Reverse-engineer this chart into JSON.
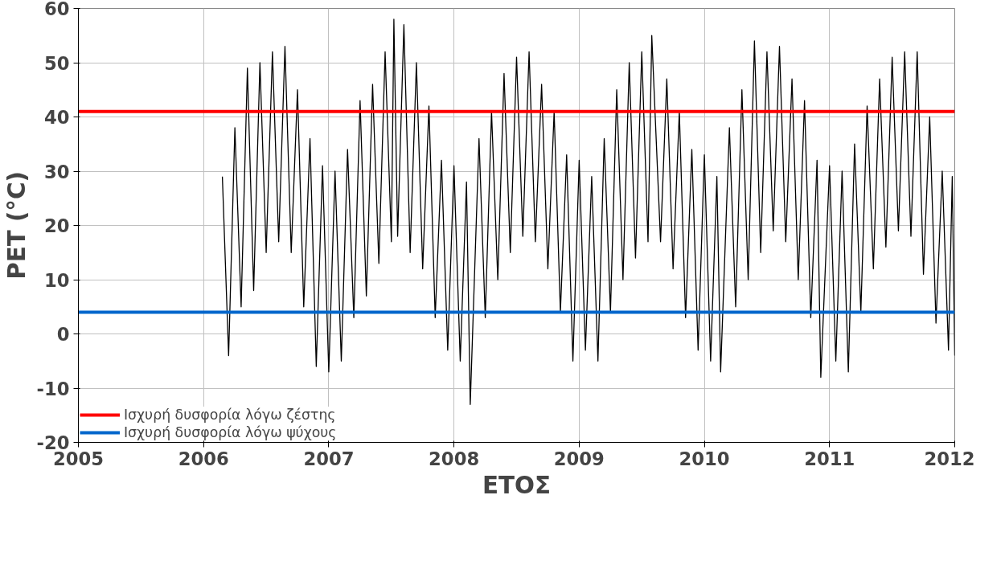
{
  "chart_data": {
    "type": "line",
    "xlabel": "ΕΤΟΣ",
    "ylabel": "PET (°C)",
    "xlim": [
      2005,
      2012
    ],
    "xticks": [
      2005,
      2006,
      2007,
      2008,
      2009,
      2010,
      2011,
      2012
    ],
    "ylim": [
      -20,
      60
    ],
    "yticks": [
      -20,
      -10,
      0,
      10,
      20,
      30,
      40,
      50,
      60
    ],
    "grid": true,
    "legend": "bottom left",
    "line_style": "solid",
    "series": [
      {
        "color": "#000000",
        "x": [
          2006.15,
          2006.2,
          2006.25,
          2006.3,
          2006.35,
          2006.4,
          2006.45,
          2006.5,
          2006.55,
          2006.6,
          2006.65,
          2006.7,
          2006.75,
          2006.8,
          2006.85,
          2006.9,
          2006.95,
          2007.0,
          2007.05,
          2007.1,
          2007.15,
          2007.2,
          2007.25,
          2007.3,
          2007.35,
          2007.4,
          2007.45,
          2007.5,
          2007.52,
          2007.55,
          2007.6,
          2007.65,
          2007.7,
          2007.75,
          2007.8,
          2007.85,
          2007.9,
          2007.95,
          2008.0,
          2008.05,
          2008.1,
          2008.13,
          2008.2,
          2008.25,
          2008.3,
          2008.35,
          2008.4,
          2008.45,
          2008.5,
          2008.55,
          2008.6,
          2008.65,
          2008.7,
          2008.75,
          2008.8,
          2008.85,
          2008.9,
          2008.95,
          2009.0,
          2009.05,
          2009.1,
          2009.15,
          2009.2,
          2009.25,
          2009.3,
          2009.35,
          2009.4,
          2009.45,
          2009.5,
          2009.55,
          2009.58,
          2009.65,
          2009.7,
          2009.75,
          2009.8,
          2009.85,
          2009.9,
          2009.95,
          2010.0,
          2010.05,
          2010.1,
          2010.13,
          2010.2,
          2010.25,
          2010.3,
          2010.35,
          2010.4,
          2010.45,
          2010.5,
          2010.55,
          2010.6,
          2010.65,
          2010.7,
          2010.75,
          2010.8,
          2010.85,
          2010.9,
          2010.93,
          2011.0,
          2011.05,
          2011.1,
          2011.15,
          2011.2,
          2011.25,
          2011.3,
          2011.35,
          2011.4,
          2011.45,
          2011.5,
          2011.55,
          2011.6,
          2011.65,
          2011.7,
          2011.75,
          2011.8,
          2011.85,
          2011.9,
          2011.95,
          2011.98,
          2012.0
        ],
        "values": [
          29,
          -4,
          38,
          5,
          49,
          8,
          50,
          15,
          52,
          17,
          53,
          15,
          45,
          5,
          36,
          -6,
          31,
          -7,
          30,
          -5,
          34,
          3,
          43,
          7,
          46,
          13,
          52,
          17,
          58,
          18,
          57,
          15,
          50,
          12,
          42,
          3,
          32,
          -3,
          31,
          -5,
          28,
          -13,
          36,
          3,
          41,
          10,
          48,
          15,
          51,
          18,
          52,
          17,
          46,
          12,
          41,
          4,
          33,
          -5,
          32,
          -3,
          29,
          -5,
          36,
          4,
          45,
          10,
          50,
          14,
          52,
          17,
          55,
          17,
          47,
          12,
          41,
          3,
          34,
          -3,
          33,
          -5,
          29,
          -7,
          38,
          5,
          45,
          10,
          54,
          15,
          52,
          19,
          53,
          17,
          47,
          10,
          43,
          3,
          32,
          -8,
          31,
          -5,
          30,
          -7,
          35,
          4,
          42,
          12,
          47,
          16,
          51,
          19,
          52,
          18,
          52,
          11,
          40,
          2,
          30,
          -3,
          29,
          -4
        ]
      }
    ],
    "ref_lines": [
      {
        "axis": "y",
        "value": 41,
        "label": "Ισχυρή δυσφορία λόγω ζέστης",
        "color": "#ff0000"
      },
      {
        "axis": "y",
        "value": 4,
        "label": "Ισχυρή δυσφορία λόγω ψύχους",
        "color": "#0066cc"
      }
    ]
  }
}
